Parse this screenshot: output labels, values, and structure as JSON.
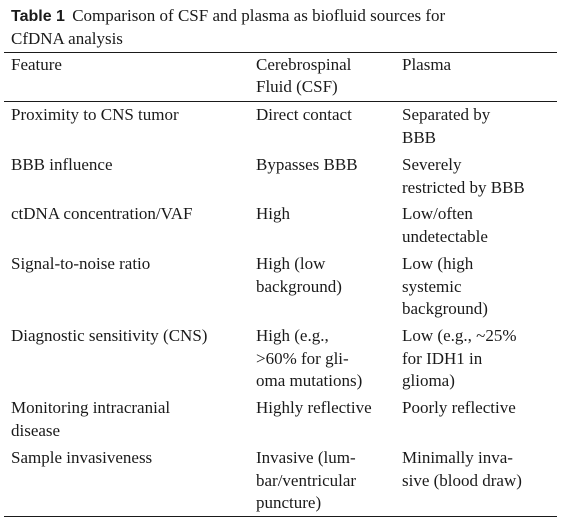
{
  "caption": {
    "label": "Table 1",
    "text_line1": "Comparison of CSF and plasma as biofluid sources for",
    "text_line2": "CfDNA analysis"
  },
  "table": {
    "headers": {
      "feature": [
        "Feature"
      ],
      "csf": [
        "Cerebrospinal",
        "Fluid (CSF)"
      ],
      "plasma": [
        "Plasma"
      ]
    },
    "rows": [
      {
        "feature": [
          "Proximity to CNS tumor"
        ],
        "csf": [
          "Direct contact"
        ],
        "plasma": [
          "Separated by",
          "BBB"
        ]
      },
      {
        "feature": [
          "BBB influence"
        ],
        "csf": [
          "Bypasses BBB"
        ],
        "plasma": [
          "Severely",
          "restricted by BBB"
        ]
      },
      {
        "feature": [
          "ctDNA concentration/VAF"
        ],
        "csf": [
          "High"
        ],
        "plasma": [
          "Low/often",
          "undetectable"
        ]
      },
      {
        "feature": [
          "Signal-to-noise ratio"
        ],
        "csf": [
          "High (low",
          "background)"
        ],
        "plasma": [
          "Low (high",
          "systemic",
          "background)"
        ]
      },
      {
        "feature": [
          "Diagnostic sensitivity (CNS)"
        ],
        "csf": [
          "High (e.g.,",
          ">60% for gli-",
          "oma mutations)"
        ],
        "plasma": [
          "Low (e.g., ~25%",
          "for IDH1 in",
          "glioma)"
        ]
      },
      {
        "feature": [
          "Monitoring intracranial",
          "disease"
        ],
        "csf": [
          "Highly reflective"
        ],
        "plasma": [
          "Poorly reflective"
        ]
      },
      {
        "feature": [
          "Sample invasiveness"
        ],
        "csf": [
          "Invasive (lum-",
          "bar/ventricular",
          "puncture)"
        ],
        "plasma": [
          "Minimally inva-",
          "sive (blood draw)"
        ]
      }
    ]
  }
}
